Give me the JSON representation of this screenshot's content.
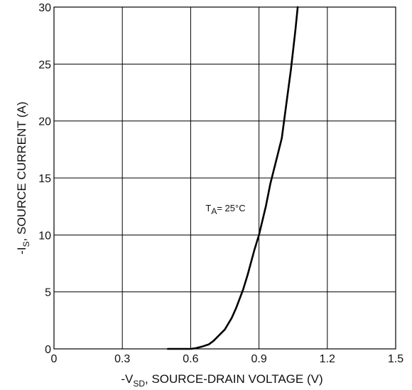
{
  "chart_data": {
    "type": "line",
    "xlabel": {
      "prefix": "-V",
      "sub": "SD",
      "rest": ", SOURCE-DRAIN VOLTAGE (V)"
    },
    "ylabel": {
      "prefix": "-I",
      "sub": "S",
      "rest": ", SOURCE CURRENT (A)"
    },
    "xlim": [
      0,
      1.5
    ],
    "ylim": [
      0,
      30
    ],
    "xticks": [
      "0",
      "0.3",
      "0.6",
      "0.9",
      "1.2",
      "1.5"
    ],
    "yticks": [
      "0",
      "5",
      "10",
      "15",
      "20",
      "25",
      "30"
    ],
    "grid": true,
    "annotation": {
      "prefix": "T",
      "sub": "A",
      "rest": "= 25°C",
      "x": 0.84,
      "y": 12
    },
    "series": [
      {
        "color": "#000000",
        "x": [
          0.5,
          0.55,
          0.6,
          0.62,
          0.65,
          0.68,
          0.7,
          0.72,
          0.75,
          0.78,
          0.8,
          0.83,
          0.85,
          0.88,
          0.9,
          0.93,
          0.95,
          0.98,
          1.0,
          1.02,
          1.04,
          1.06,
          1.07
        ],
        "y": [
          0,
          0,
          0,
          0.05,
          0.2,
          0.4,
          0.7,
          1.1,
          1.7,
          2.7,
          3.6,
          5.2,
          6.5,
          8.7,
          10.0,
          12.5,
          14.5,
          16.9,
          18.5,
          21.5,
          24.5,
          28.0,
          30.0
        ]
      }
    ]
  }
}
